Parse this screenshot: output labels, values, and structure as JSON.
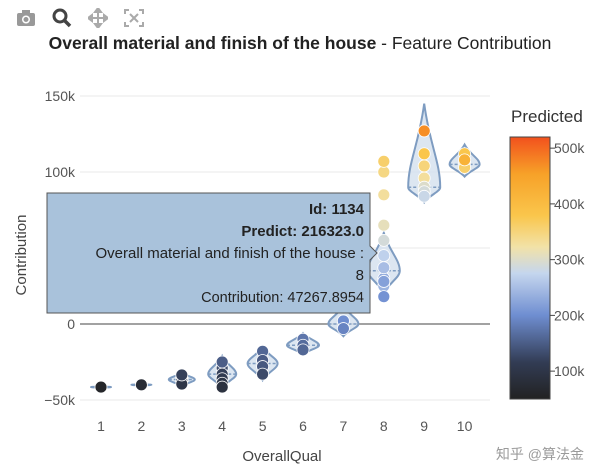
{
  "toolbar": {
    "items": [
      {
        "name": "camera-icon",
        "label": "Download plot as a png"
      },
      {
        "name": "zoom-icon",
        "label": "Zoom"
      },
      {
        "name": "pan-icon",
        "label": "Pan"
      },
      {
        "name": "autoscale-icon",
        "label": "Autoscale"
      }
    ]
  },
  "title": {
    "bold": "Overall material and finish of the house",
    "rest": " - Feature Contribution"
  },
  "colorbar": {
    "title": "Predicted",
    "ticks": [
      "500k",
      "400k",
      "300k",
      "200k",
      "100k"
    ]
  },
  "watermark": "知乎 @算法金",
  "colors": {
    "violin_fill": "#d6e2ef",
    "violin_line": "#7e9cc1",
    "hover_bg": "#a9c2db",
    "hover_border": "#555555"
  },
  "hover": {
    "line1": "Id: 1134",
    "line2": "Predict: 216323.0",
    "line3": "Overall material and finish of the house :",
    "line4": "8",
    "line5": "Contribution: 47267.8954"
  },
  "chart_data": {
    "type": "violin",
    "title": "Overall material and finish of the house - Feature Contribution",
    "xlabel": "OverallQual",
    "ylabel": "Contribution",
    "ylim": [
      -55000,
      155000
    ],
    "yticks": [
      -50000,
      0,
      50000,
      100000,
      150000
    ],
    "ytick_labels": [
      "−50k",
      "0",
      "",
      "100k",
      "150k"
    ],
    "categories": [
      1,
      2,
      3,
      4,
      5,
      6,
      7,
      8,
      9,
      10
    ],
    "series": [
      {
        "category": 1,
        "median": -41500,
        "min": -42000,
        "max": -41000,
        "predicted": [
          60000
        ]
      },
      {
        "category": 2,
        "median": -40000,
        "min": -40500,
        "max": -39500,
        "predicted": [
          75000
        ]
      },
      {
        "category": 3,
        "median": -36500,
        "min": -41000,
        "max": -32000,
        "predicted": [
          85000,
          100000,
          110000,
          120000
        ]
      },
      {
        "category": 4,
        "median": -33000,
        "min": -42000,
        "max": -21000,
        "predicted": [
          100000,
          115000,
          130000,
          140000
        ]
      },
      {
        "category": 5,
        "median": -26000,
        "min": -37000,
        "max": -15000,
        "predicted": [
          130000,
          140000,
          150000,
          160000
        ]
      },
      {
        "category": 6,
        "median": -14000,
        "min": -20000,
        "max": -6000,
        "predicted": [
          160000,
          175000,
          190000
        ]
      },
      {
        "category": 7,
        "median": 0,
        "min": -8000,
        "max": 12000,
        "predicted": [
          190000,
          200000,
          215000
        ]
      },
      {
        "category": 8,
        "median": 35000,
        "min": 20000,
        "max": 60000,
        "predicted": [
          210000,
          250000,
          280000,
          320000
        ]
      },
      {
        "category": 9,
        "median": 90000,
        "min": 80000,
        "max": 145000,
        "predicted": [
          300000,
          340000,
          380000,
          420000,
          480000
        ]
      },
      {
        "category": 10,
        "median": 105000,
        "min": 97000,
        "max": 118000,
        "predicted": [
          360000,
          400000,
          440000
        ]
      }
    ],
    "points": [
      {
        "x": 1,
        "y": -41500,
        "p": 60000
      },
      {
        "x": 2,
        "y": -40000,
        "p": 75000
      },
      {
        "x": 3,
        "y": -35000,
        "p": 90000
      },
      {
        "x": 3,
        "y": -37500,
        "p": 110000
      },
      {
        "x": 3,
        "y": -39500,
        "p": 100000
      },
      {
        "x": 3,
        "y": -33500,
        "p": 120000
      },
      {
        "x": 4,
        "y": -29000,
        "p": 135000
      },
      {
        "x": 4,
        "y": -33000,
        "p": 120000
      },
      {
        "x": 4,
        "y": -36000,
        "p": 110000
      },
      {
        "x": 4,
        "y": -39000,
        "p": 100000
      },
      {
        "x": 4,
        "y": -41500,
        "p": 90000
      },
      {
        "x": 4,
        "y": -25000,
        "p": 150000
      },
      {
        "x": 5,
        "y": -18000,
        "p": 160000
      },
      {
        "x": 5,
        "y": -24000,
        "p": 150000
      },
      {
        "x": 5,
        "y": -28000,
        "p": 145000
      },
      {
        "x": 5,
        "y": -33000,
        "p": 130000
      },
      {
        "x": 6,
        "y": -10000,
        "p": 175000
      },
      {
        "x": 6,
        "y": -14000,
        "p": 165000
      },
      {
        "x": 6,
        "y": -17000,
        "p": 160000
      },
      {
        "x": 7,
        "y": 2000,
        "p": 200000
      },
      {
        "x": 7,
        "y": -3000,
        "p": 190000
      },
      {
        "x": 8,
        "y": 25000,
        "p": 240000
      },
      {
        "x": 8,
        "y": 30000,
        "p": 230000
      },
      {
        "x": 8,
        "y": 37000,
        "p": 250000
      },
      {
        "x": 8,
        "y": 45000,
        "p": 270000
      },
      {
        "x": 8,
        "y": 55000,
        "p": 290000
      },
      {
        "x": 8,
        "y": 65000,
        "p": 310000
      },
      {
        "x": 8,
        "y": 85000,
        "p": 330000
      },
      {
        "x": 8,
        "y": 100000,
        "p": 345000
      },
      {
        "x": 8,
        "y": 107000,
        "p": 360000
      },
      {
        "x": 8,
        "y": 28000,
        "p": 220000
      },
      {
        "x": 8,
        "y": 18000,
        "p": 205000
      },
      {
        "x": 9,
        "y": 127000,
        "p": 470000
      },
      {
        "x": 9,
        "y": 112000,
        "p": 380000
      },
      {
        "x": 9,
        "y": 104000,
        "p": 350000
      },
      {
        "x": 9,
        "y": 96000,
        "p": 330000
      },
      {
        "x": 9,
        "y": 90000,
        "p": 300000
      },
      {
        "x": 9,
        "y": 87000,
        "p": 290000
      },
      {
        "x": 9,
        "y": 84000,
        "p": 280000
      },
      {
        "x": 10,
        "y": 112000,
        "p": 380000
      },
      {
        "x": 10,
        "y": 106000,
        "p": 400000
      },
      {
        "x": 10,
        "y": 103000,
        "p": 360000
      },
      {
        "x": 10,
        "y": 108000,
        "p": 420000
      }
    ]
  }
}
